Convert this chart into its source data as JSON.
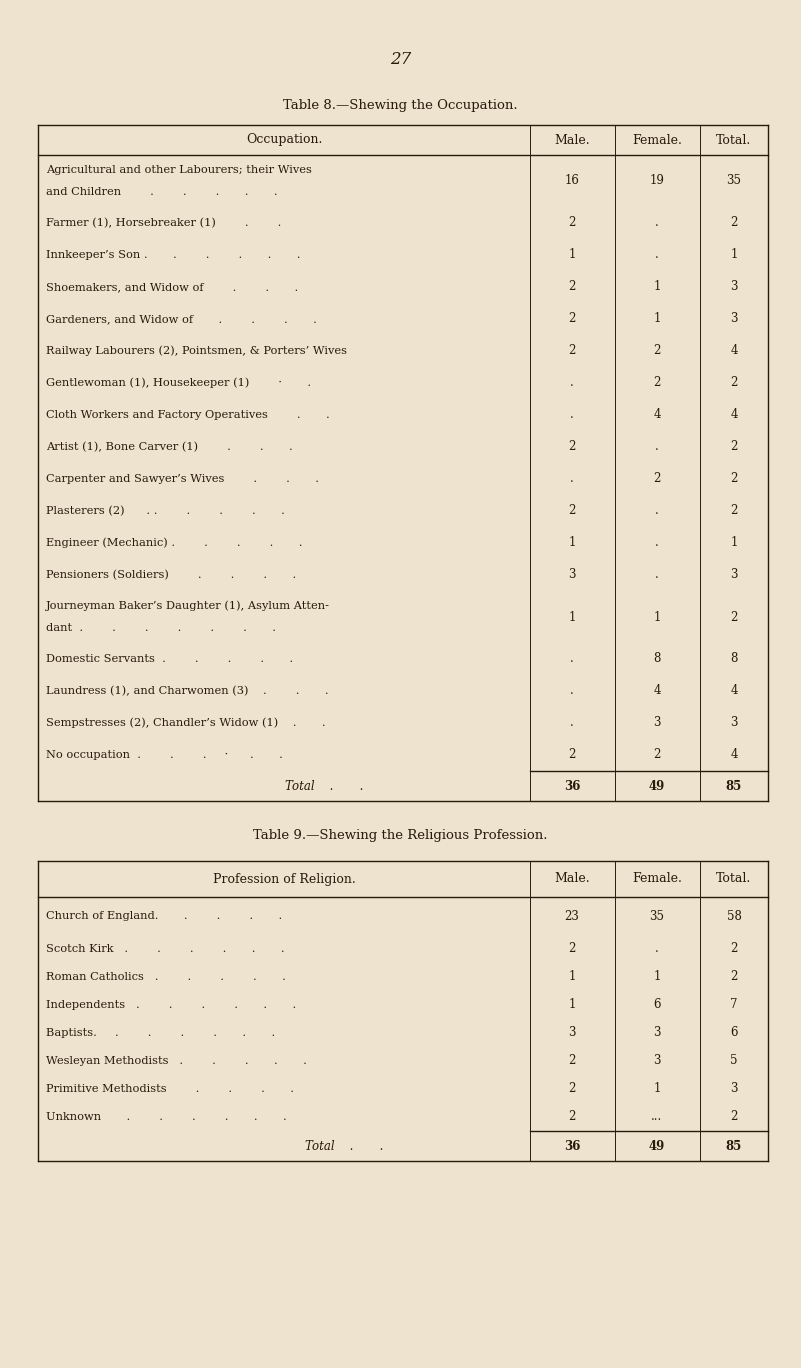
{
  "bg_color": "#ede3ce",
  "text_color": "#2a1a0a",
  "page_number": "27",
  "fig_w": 8.01,
  "fig_h": 13.68,
  "dpi": 100,
  "table8": {
    "title": "Table 8.—Shewing the Occupation.",
    "header_col0": "Occupation.",
    "header_cols": [
      "Male.",
      "Female.",
      "Total."
    ],
    "rows": [
      [
        "Agricultural and other Labourers; their Wives",
        "and Children        .        .        .       .       .",
        "16",
        "19",
        "35"
      ],
      [
        "Farmer (1), Horsebreaker (1)        .        .",
        "",
        "2",
        ".",
        "2"
      ],
      [
        "Innkeeper’s Son .       .        .        .       .       .",
        "",
        "1",
        ".",
        "1"
      ],
      [
        "Shoemakers, and Widow of        .        .       .",
        "",
        "2",
        "1",
        "3"
      ],
      [
        "Gardeners, and Widow of       .        .        .       .",
        "",
        "2",
        "1",
        "3"
      ],
      [
        "Railway Labourers (2), Pointsmen, & Porters’ Wives",
        "",
        "2",
        "2",
        "4"
      ],
      [
        "Gentlewoman (1), Housekeeper (1)        ·       .",
        "",
        ".",
        "2",
        "2"
      ],
      [
        "Cloth Workers and Factory Operatives        .       .",
        "",
        ".",
        "4",
        "4"
      ],
      [
        "Artist (1), Bone Carver (1)        .        .       .",
        "",
        "2",
        ".",
        "2"
      ],
      [
        "Carpenter and Sawyer’s Wives        .        .       .",
        "",
        ".",
        "2",
        "2"
      ],
      [
        "Plasterers (2)      . .        .        .        .       .",
        "",
        "2",
        ".",
        "2"
      ],
      [
        "Engineer (Mechanic) .        .        .        .       .",
        "",
        "1",
        ".",
        "1"
      ],
      [
        "Pensioners (Soldiers)        .        .        .       .",
        "",
        "3",
        ".",
        "3"
      ],
      [
        "Journeyman Baker’s Daughter (1), Asylum Atten-",
        "dant  .        .        .        .        .        .       .",
        "1",
        "1",
        "2"
      ],
      [
        "Domestic Servants  .        .        .        .       .",
        "",
        ".",
        "8",
        "8"
      ],
      [
        "Laundress (1), and Charwomen (3)    .        .       .",
        "",
        ".",
        "4",
        "4"
      ],
      [
        "Sempstresses (2), Chandler’s Widow (1)    .       .",
        "",
        ".",
        "3",
        "3"
      ],
      [
        "No occupation  .        .        .     ·      .       .",
        "",
        "2",
        "2",
        "4"
      ]
    ],
    "total": [
      "36",
      "49",
      "85"
    ]
  },
  "table9": {
    "title": "Table 9.—Shewing the Religious Profession.",
    "header_col0": "Profession of Religion.",
    "header_cols": [
      "Male.",
      "Female.",
      "Total."
    ],
    "rows": [
      [
        "Church of England.       .        .        .       .",
        "23",
        "35",
        "58"
      ],
      [
        "Scotch Kirk   .        .        .        .       .       .",
        "2",
        ".",
        "2"
      ],
      [
        "Roman Catholics   .        .        .        .       .",
        "1",
        "1",
        "2"
      ],
      [
        "Independents   .        .        .        .       .       .",
        "1",
        "6",
        "7"
      ],
      [
        "Baptists.     .        .        .        .       .       .",
        "3",
        "3",
        "6"
      ],
      [
        "Wesleyan Methodists   .        .        .       .       .",
        "2",
        "3",
        "5"
      ],
      [
        "Primitive Methodists        .        .        .       .",
        "2",
        "1",
        "3"
      ],
      [
        "Unknown       .        .        .        .       .       .",
        "2",
        "...",
        "2"
      ]
    ],
    "total": [
      "36",
      "49",
      "85"
    ]
  }
}
